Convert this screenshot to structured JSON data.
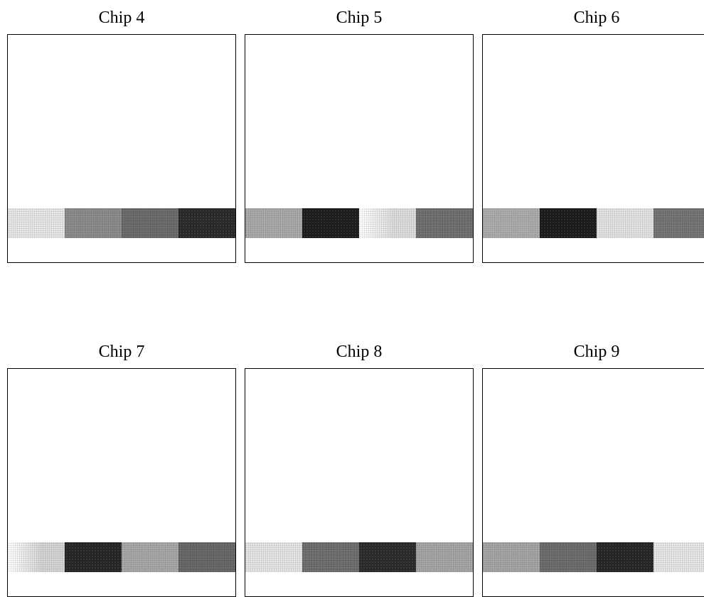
{
  "panels": [
    {
      "title": "Chip 4",
      "swatches": [
        {
          "color": "#e6e6e6",
          "fade": false
        },
        {
          "color": "#8a8a8a",
          "fade": false
        },
        {
          "color": "#6a6a6a",
          "fade": false
        },
        {
          "color": "#2a2a2a",
          "fade": false
        }
      ]
    },
    {
      "title": "Chip 5",
      "swatches": [
        {
          "color": "#a8a8a8",
          "fade": false
        },
        {
          "color": "#1e1e1e",
          "fade": false
        },
        {
          "color": "#dcdcdc",
          "fade": true
        },
        {
          "color": "#6e6e6e",
          "fade": false
        }
      ]
    },
    {
      "title": "Chip 6",
      "swatches": [
        {
          "color": "#ababab",
          "fade": false
        },
        {
          "color": "#1c1c1c",
          "fade": false
        },
        {
          "color": "#e2e2e2",
          "fade": false
        },
        {
          "color": "#737373",
          "fade": false
        }
      ]
    },
    {
      "title": "Chip 7",
      "swatches": [
        {
          "color": "#d4d4d4",
          "fade": true
        },
        {
          "color": "#262626",
          "fade": false
        },
        {
          "color": "#a6a6a6",
          "fade": false
        },
        {
          "color": "#666666",
          "fade": false
        }
      ]
    },
    {
      "title": "Chip 8",
      "swatches": [
        {
          "color": "#e4e4e4",
          "fade": false
        },
        {
          "color": "#6d6d6d",
          "fade": false
        },
        {
          "color": "#2b2b2b",
          "fade": false
        },
        {
          "color": "#a5a5a5",
          "fade": false
        }
      ]
    },
    {
      "title": "Chip 9",
      "swatches": [
        {
          "color": "#a3a3a3",
          "fade": false
        },
        {
          "color": "#6b6b6b",
          "fade": false
        },
        {
          "color": "#262626",
          "fade": false
        },
        {
          "color": "#e6e6e6",
          "fade": false
        }
      ]
    }
  ]
}
